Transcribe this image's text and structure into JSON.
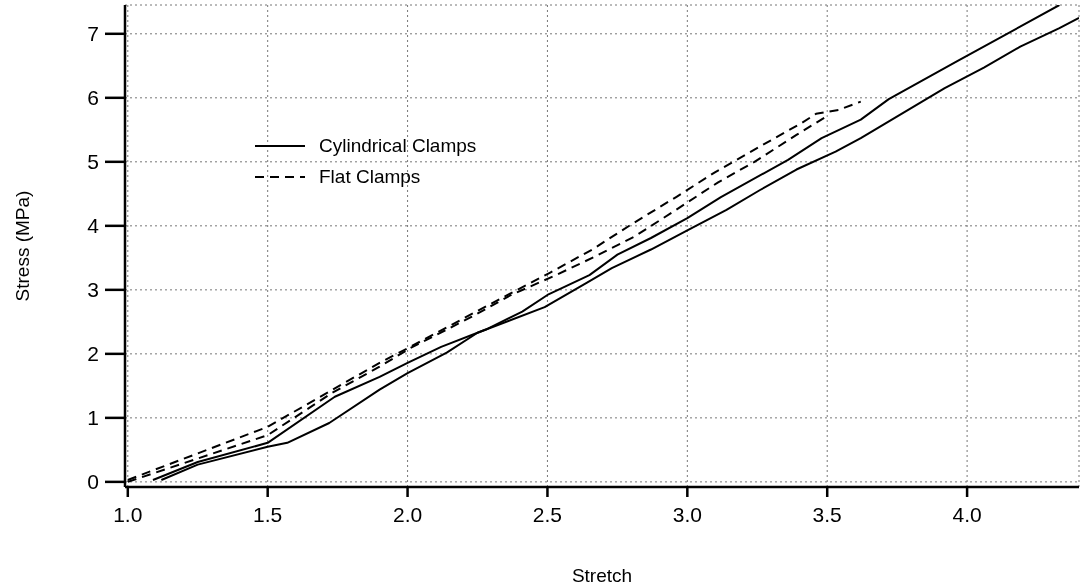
{
  "chart_data": {
    "type": "line",
    "xlabel": "Stretch",
    "ylabel": "Stress (MPa)",
    "xlim": [
      0.99,
      4.4
    ],
    "ylim": [
      -0.08,
      7.45
    ],
    "xticks": [
      {
        "value": 1,
        "label": "1.0"
      },
      {
        "value": 1.5,
        "label": "1.5"
      },
      {
        "value": 2,
        "label": "2.0"
      },
      {
        "value": 2.5,
        "label": "2.5"
      },
      {
        "value": 3,
        "label": "3.0"
      },
      {
        "value": 3.5,
        "label": "3.5"
      },
      {
        "value": 4,
        "label": "4.0"
      }
    ],
    "yticks": [
      0,
      1,
      2,
      3,
      4,
      5,
      6,
      7
    ],
    "grid": true,
    "legend": "top left",
    "marker": "none",
    "series": [
      {
        "name": "Cylindrical Clamps",
        "color": "#000000",
        "line_style": "solid",
        "x": [
          1.09,
          1.25,
          1.5,
          1.74,
          1.9,
          2.0,
          2.12,
          2.28,
          2.41,
          2.5,
          2.65,
          2.75,
          2.87,
          3.0,
          3.12,
          3.36,
          3.48,
          3.62,
          3.72,
          3.96,
          4.33
        ],
        "values": [
          0.03,
          0.31,
          0.61,
          1.33,
          1.64,
          1.86,
          2.11,
          2.38,
          2.66,
          2.92,
          3.23,
          3.55,
          3.81,
          4.12,
          4.45,
          5.03,
          5.37,
          5.66,
          5.98,
          6.56,
          7.45
        ]
      },
      {
        "color": "#000000",
        "line_style": "solid",
        "x": [
          1.12,
          1.25,
          1.5,
          1.57,
          1.72,
          1.9,
          2.0,
          2.14,
          2.25,
          2.49,
          2.64,
          2.73,
          2.87,
          3.0,
          3.14,
          3.26,
          3.39,
          3.53,
          3.62,
          3.92,
          4.06,
          4.19,
          4.33,
          4.4
        ],
        "values": [
          0.03,
          0.27,
          0.55,
          0.61,
          0.92,
          1.44,
          1.7,
          2.02,
          2.33,
          2.73,
          3.11,
          3.34,
          3.63,
          3.93,
          4.25,
          4.56,
          4.88,
          5.16,
          5.37,
          6.15,
          6.47,
          6.8,
          7.09,
          7.25
        ]
      },
      {
        "name": "Flat Clamps",
        "color": "#000000",
        "line_style": "dashed",
        "x": [
          1.0,
          1.5,
          1.9,
          2.01,
          2.37,
          2.51,
          2.66,
          2.81,
          2.96,
          3.1,
          3.26,
          3.41,
          3.46,
          3.54,
          3.62
        ],
        "values": [
          0.03,
          0.86,
          1.86,
          2.11,
          2.95,
          3.27,
          3.63,
          4.05,
          4.45,
          4.84,
          5.24,
          5.61,
          5.75,
          5.81,
          5.94
        ]
      },
      {
        "color": "#000000",
        "line_style": "dashed",
        "x": [
          1.0,
          1.5,
          1.73,
          1.9,
          2.01,
          2.23,
          2.37,
          2.53,
          2.67,
          2.81,
          2.96,
          3.11,
          3.24,
          3.39,
          3.49
        ],
        "values": [
          0.0,
          0.73,
          1.39,
          1.8,
          2.09,
          2.58,
          2.92,
          3.23,
          3.52,
          3.83,
          4.25,
          4.68,
          5.0,
          5.42,
          5.69
        ]
      }
    ]
  }
}
